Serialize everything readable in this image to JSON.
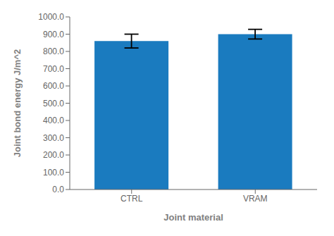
{
  "chart_data": {
    "type": "bar",
    "categories": [
      "CTRL",
      "VRAM"
    ],
    "values": [
      860.0,
      900.0
    ],
    "errors": [
      40.0,
      28.0
    ],
    "color": "#1a7bbf",
    "xlabel": "Joint material",
    "ylabel": "Joint bond energy J/m^2",
    "ylim": [
      0,
      1000
    ],
    "yticks": [
      {
        "value": 0.0,
        "label": "0.0"
      },
      {
        "value": 100.0,
        "label": "100.0"
      },
      {
        "value": 200.0,
        "label": "200.0"
      },
      {
        "value": 300.0,
        "label": "300.0"
      },
      {
        "value": 400.0,
        "label": "400.0"
      },
      {
        "value": 500.0,
        "label": "500.0"
      },
      {
        "value": 600.0,
        "label": "600.0"
      },
      {
        "value": 700.0,
        "label": "700.0"
      },
      {
        "value": 800.0,
        "label": "800.0"
      },
      {
        "value": 900.0,
        "label": "900.0"
      },
      {
        "value": 1000.0,
        "label": "1000.0"
      }
    ],
    "grid": false
  }
}
